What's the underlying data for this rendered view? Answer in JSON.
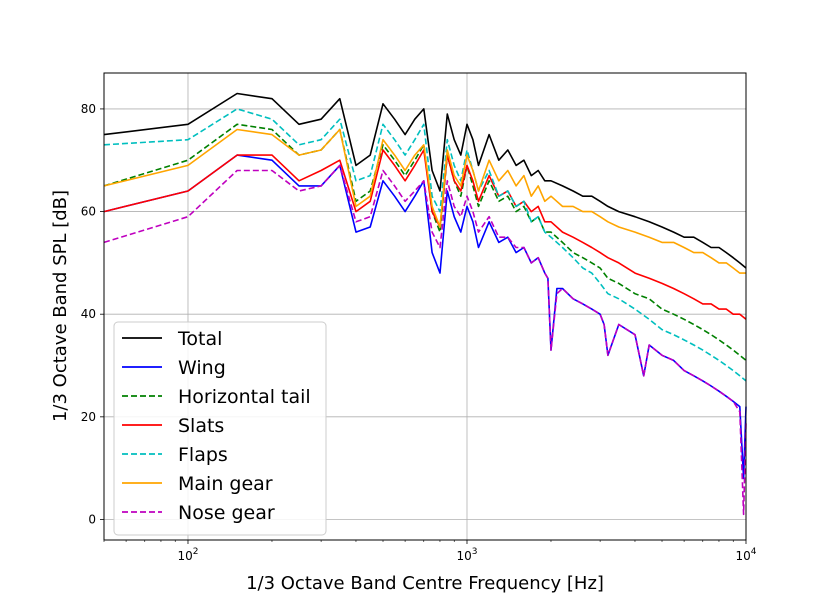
{
  "chart_data": {
    "type": "line",
    "xlabel": "1/3 Octave Band Centre Frequency [Hz]",
    "ylabel": "1/3 Octave Band SPL [dB]",
    "xscale": "log",
    "xlim": [
      50,
      10000
    ],
    "ylim": [
      -4,
      87
    ],
    "xticks": [
      100,
      1000,
      10000
    ],
    "xtick_labels": [
      {
        "base": "10",
        "exp": "2"
      },
      {
        "base": "10",
        "exp": "3"
      },
      {
        "base": "10",
        "exp": "4"
      }
    ],
    "yticks": [
      0,
      20,
      40,
      60,
      80
    ],
    "ytick_labels": [
      "0",
      "20",
      "40",
      "60",
      "80"
    ],
    "grid": true,
    "legend_position": "lower-left",
    "series": [
      {
        "name": "Total",
        "color": "#000000",
        "style": "solid",
        "x": [
          50,
          100,
          150,
          200,
          250,
          300,
          350,
          400,
          450,
          500,
          550,
          600,
          650,
          700,
          750,
          800,
          850,
          900,
          950,
          1000,
          1050,
          1100,
          1200,
          1300,
          1400,
          1500,
          1600,
          1700,
          1800,
          1900,
          2000,
          2200,
          2400,
          2600,
          2800,
          3000,
          3200,
          3500,
          4000,
          4500,
          5000,
          5500,
          6000,
          6500,
          7000,
          7500,
          8000,
          8500,
          9000,
          9500,
          10000
        ],
        "y": [
          75,
          77,
          83,
          82,
          77,
          78,
          82,
          69,
          71,
          81,
          78,
          75,
          78,
          80,
          68,
          64,
          79,
          74,
          71,
          77,
          74,
          69,
          75,
          70,
          72,
          69,
          70,
          67,
          68,
          66,
          66,
          65,
          64,
          63,
          63,
          62,
          61,
          60,
          59,
          58,
          57,
          56,
          55,
          55,
          54,
          53,
          53,
          52,
          51,
          50,
          49
        ]
      },
      {
        "name": "Wing",
        "color": "#0000ff",
        "style": "solid",
        "x": [
          50,
          100,
          150,
          200,
          250,
          300,
          350,
          400,
          450,
          500,
          550,
          600,
          650,
          700,
          750,
          800,
          850,
          900,
          950,
          1000,
          1050,
          1100,
          1200,
          1300,
          1400,
          1500,
          1600,
          1700,
          1800,
          1900,
          1950,
          2000,
          2100,
          2200,
          2400,
          2600,
          2800,
          3000,
          3100,
          3200,
          3500,
          4000,
          4300,
          4500,
          5000,
          5500,
          6000,
          6500,
          7000,
          7500,
          8000,
          8500,
          9000,
          9500,
          9800,
          10000
        ],
        "y": [
          60,
          64,
          71,
          70,
          65,
          65,
          69,
          56,
          57,
          66,
          63,
          60,
          63,
          66,
          52,
          48,
          64,
          59,
          56,
          61,
          58,
          53,
          58,
          54,
          55,
          52,
          53,
          50,
          51,
          48,
          47,
          33,
          45,
          45,
          43,
          42,
          41,
          40,
          38,
          32,
          38,
          36,
          28,
          34,
          32,
          31,
          29,
          28,
          27,
          26,
          25,
          24,
          23,
          22,
          8,
          22
        ]
      },
      {
        "name": "Horizontal tail",
        "color": "#008000",
        "style": "dashed",
        "x": [
          50,
          100,
          150,
          200,
          250,
          300,
          350,
          400,
          450,
          500,
          550,
          600,
          650,
          700,
          750,
          800,
          850,
          900,
          950,
          1000,
          1050,
          1100,
          1200,
          1300,
          1400,
          1500,
          1600,
          1700,
          1800,
          1900,
          2000,
          2200,
          2400,
          2600,
          2800,
          3000,
          3200,
          3500,
          4000,
          4500,
          5000,
          5500,
          6000,
          6500,
          7000,
          7500,
          8000,
          8500,
          9000,
          9500,
          10000
        ],
        "y": [
          65,
          70,
          77,
          76,
          71,
          72,
          76,
          62,
          64,
          73,
          70,
          67,
          70,
          73,
          60,
          56,
          71,
          66,
          63,
          69,
          65,
          61,
          66,
          62,
          63,
          60,
          61,
          58,
          59,
          56,
          56,
          54,
          52,
          51,
          50,
          49,
          47,
          46,
          44,
          43,
          41,
          40,
          39,
          38,
          37,
          36,
          35,
          34,
          33,
          32,
          31
        ]
      },
      {
        "name": "Slats",
        "color": "#ff0000",
        "style": "solid",
        "x": [
          50,
          100,
          150,
          200,
          250,
          300,
          350,
          400,
          450,
          500,
          550,
          600,
          650,
          700,
          750,
          800,
          850,
          900,
          950,
          1000,
          1050,
          1100,
          1200,
          1300,
          1400,
          1500,
          1600,
          1700,
          1800,
          1900,
          2000,
          2200,
          2400,
          2600,
          2800,
          3000,
          3200,
          3500,
          4000,
          4500,
          5000,
          5500,
          6000,
          6500,
          7000,
          7500,
          8000,
          8500,
          9000,
          9500,
          10000
        ],
        "y": [
          60,
          64,
          71,
          71,
          66,
          68,
          70,
          60,
          62,
          72,
          69,
          66,
          69,
          72,
          60,
          57,
          71,
          66,
          64,
          69,
          66,
          62,
          67,
          63,
          64,
          61,
          62,
          60,
          61,
          58,
          58,
          56,
          55,
          54,
          53,
          52,
          51,
          50,
          48,
          47,
          46,
          45,
          44,
          43,
          42,
          42,
          41,
          41,
          40,
          40,
          39
        ]
      },
      {
        "name": "Flaps",
        "color": "#00bfbf",
        "style": "dashed",
        "x": [
          50,
          100,
          150,
          200,
          250,
          300,
          350,
          400,
          450,
          500,
          550,
          600,
          650,
          700,
          750,
          800,
          850,
          900,
          950,
          1000,
          1050,
          1100,
          1200,
          1300,
          1400,
          1500,
          1600,
          1700,
          1800,
          1900,
          2000,
          2200,
          2400,
          2600,
          2800,
          3000,
          3200,
          3500,
          4000,
          4500,
          5000,
          5500,
          6000,
          6500,
          7000,
          7500,
          8000,
          8500,
          9000,
          9500,
          10000
        ],
        "y": [
          73,
          74,
          80,
          78,
          73,
          74,
          78,
          66,
          67,
          77,
          74,
          71,
          74,
          77,
          63,
          60,
          74,
          69,
          66,
          72,
          68,
          64,
          68,
          63,
          64,
          61,
          62,
          58,
          59,
          56,
          55,
          53,
          51,
          49,
          48,
          46,
          44,
          43,
          41,
          39,
          37,
          36,
          35,
          34,
          33,
          32,
          31,
          30,
          29,
          28,
          27
        ]
      },
      {
        "name": "Main gear",
        "color": "#ffa500",
        "style": "solid",
        "x": [
          50,
          100,
          150,
          200,
          250,
          300,
          350,
          400,
          450,
          500,
          550,
          600,
          650,
          700,
          750,
          800,
          850,
          900,
          950,
          1000,
          1050,
          1100,
          1200,
          1300,
          1400,
          1500,
          1600,
          1700,
          1800,
          1900,
          2000,
          2200,
          2400,
          2600,
          2800,
          3000,
          3200,
          3500,
          4000,
          4500,
          5000,
          5500,
          6000,
          6500,
          7000,
          7500,
          8000,
          8500,
          9000,
          9500,
          10000
        ],
        "y": [
          65,
          69,
          76,
          75,
          71,
          72,
          76,
          61,
          63,
          74,
          71,
          68,
          71,
          73,
          61,
          57,
          72,
          67,
          65,
          71,
          68,
          64,
          70,
          66,
          68,
          65,
          67,
          63,
          65,
          62,
          63,
          61,
          61,
          60,
          60,
          59,
          58,
          57,
          56,
          55,
          54,
          54,
          53,
          52,
          52,
          51,
          50,
          50,
          49,
          48,
          48
        ]
      },
      {
        "name": "Nose gear",
        "color": "#bf00bf",
        "style": "dashed",
        "x": [
          50,
          100,
          150,
          200,
          250,
          300,
          350,
          400,
          450,
          500,
          550,
          600,
          650,
          700,
          750,
          800,
          850,
          900,
          950,
          1000,
          1050,
          1100,
          1200,
          1300,
          1400,
          1500,
          1600,
          1700,
          1800,
          1900,
          1950,
          2000,
          2100,
          2200,
          2400,
          2600,
          2800,
          3000,
          3100,
          3200,
          3500,
          4000,
          4300,
          4500,
          5000,
          5500,
          6000,
          6500,
          7000,
          7500,
          8000,
          8500,
          9000,
          9500,
          9800,
          10000
        ],
        "y": [
          54,
          59,
          68,
          68,
          64,
          65,
          69,
          58,
          59,
          68,
          65,
          62,
          64,
          66,
          56,
          53,
          66,
          61,
          59,
          63,
          60,
          56,
          59,
          55,
          55,
          53,
          53,
          50,
          51,
          48,
          47,
          33,
          44,
          45,
          43,
          42,
          41,
          40,
          38,
          32,
          38,
          36,
          28,
          34,
          32,
          31,
          29,
          28,
          27,
          26,
          25,
          24,
          23,
          21,
          1,
          19
        ]
      }
    ]
  }
}
